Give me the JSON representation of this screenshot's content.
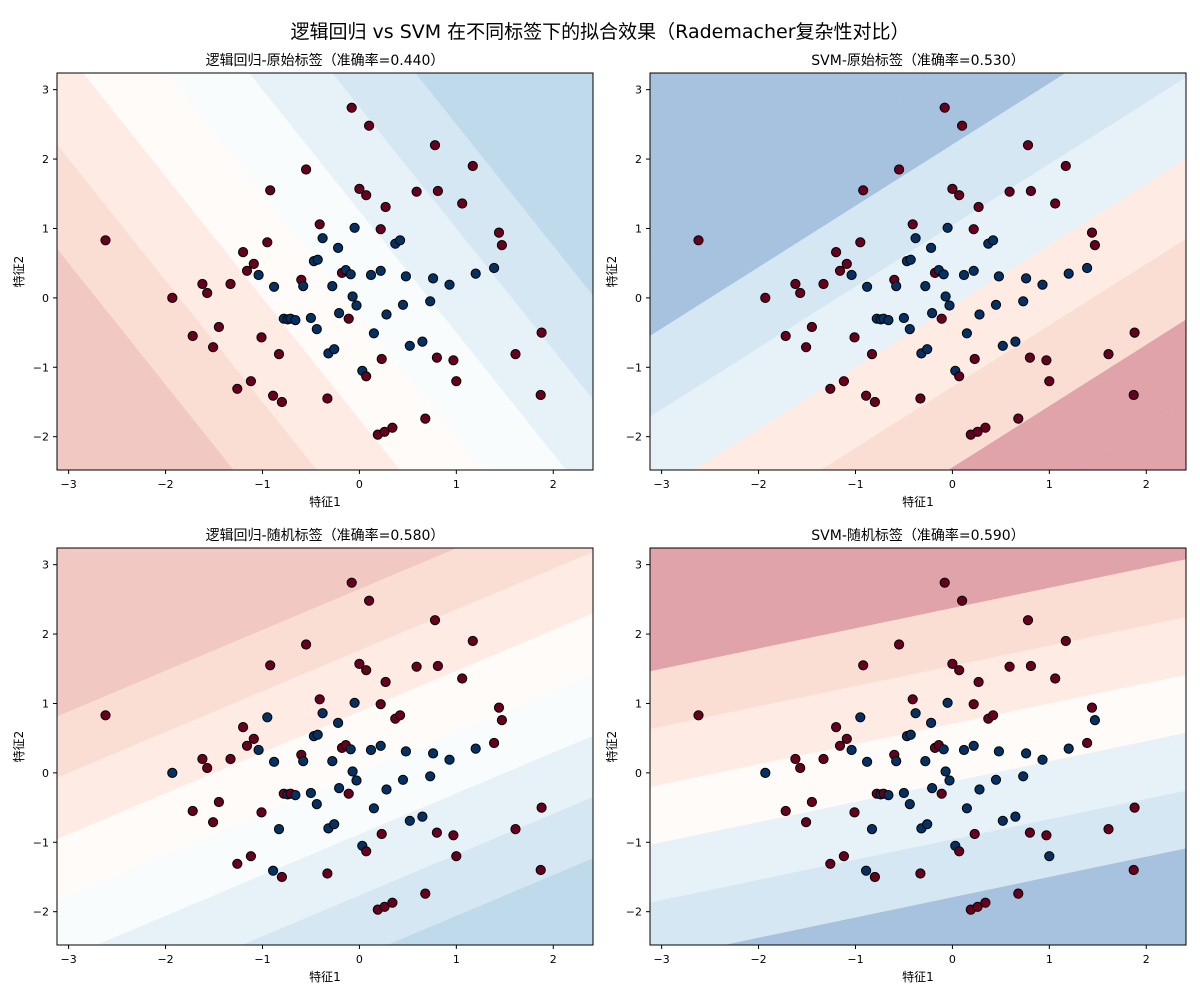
{
  "suptitle": "逻辑回归 vs SVM 在不同标签下的拟合效果（Rademacher复杂性对比）",
  "colors": {
    "class_pos": "#67001f",
    "class_neg": "#053061",
    "contour_red": [
      "#f4a582",
      "#ef8a62",
      "#d6604d",
      "#b2182b"
    ],
    "contour_blue": [
      "#92c5de",
      "#67a9cf",
      "#4393c3",
      "#2166ac"
    ]
  },
  "points": {
    "x": [
      -2.62,
      -1.93,
      -1.72,
      -1.62,
      -1.57,
      -1.51,
      -1.45,
      -1.33,
      -1.26,
      -1.2,
      -1.16,
      -1.12,
      -1.09,
      -1.04,
      -1.01,
      -0.95,
      -0.92,
      -0.89,
      -0.88,
      -0.83,
      -0.8,
      -0.78,
      -0.74,
      -0.71,
      -0.66,
      -0.6,
      -0.58,
      -0.55,
      -0.5,
      -0.47,
      -0.44,
      -0.43,
      -0.41,
      -0.38,
      -0.33,
      -0.32,
      -0.28,
      -0.26,
      -0.22,
      -0.21,
      -0.18,
      -0.14,
      -0.11,
      -0.09,
      -0.08,
      -0.07,
      -0.05,
      -0.03,
      0.0,
      0.03,
      0.07,
      0.07,
      0.1,
      0.12,
      0.15,
      0.19,
      0.22,
      0.22,
      0.23,
      0.26,
      0.27,
      0.28,
      0.34,
      0.37,
      0.42,
      0.45,
      0.48,
      0.52,
      0.59,
      0.65,
      0.68,
      0.73,
      0.76,
      0.78,
      0.8,
      0.81,
      0.93,
      0.97,
      1.0,
      1.06,
      1.17,
      1.2,
      1.39,
      1.44,
      1.47,
      1.61,
      1.87,
      1.88
    ],
    "y": [
      0.83,
      0.0,
      -0.55,
      0.2,
      0.07,
      -0.71,
      -0.42,
      0.2,
      -1.31,
      0.66,
      0.39,
      -1.2,
      0.49,
      0.33,
      -0.57,
      0.8,
      1.55,
      -1.41,
      0.16,
      -0.81,
      -1.5,
      -0.3,
      -0.31,
      -0.3,
      -0.32,
      0.26,
      0.17,
      1.85,
      -0.29,
      0.53,
      -0.45,
      0.55,
      1.06,
      0.86,
      -1.45,
      -0.8,
      0.17,
      -0.74,
      0.72,
      -0.22,
      0.36,
      0.4,
      -0.3,
      0.34,
      2.74,
      0.02,
      1.01,
      -0.11,
      1.57,
      -1.05,
      -1.13,
      1.48,
      2.48,
      0.33,
      -0.51,
      -1.97,
      0.99,
      0.39,
      -0.88,
      -1.93,
      1.31,
      -0.24,
      -1.87,
      0.78,
      0.83,
      -0.1,
      0.31,
      -0.69,
      1.53,
      -0.63,
      -1.74,
      -0.05,
      0.28,
      2.2,
      -0.86,
      1.54,
      0.19,
      -0.9,
      -1.2,
      1.36,
      1.9,
      0.35,
      0.43,
      0.94,
      0.76,
      -0.81,
      -1.4,
      -0.5
    ]
  },
  "chart_data": [
    {
      "type": "scatter",
      "title": "逻辑回归-原始标签（准确率=0.440）",
      "xlabel": "特征1",
      "ylabel": "特征2",
      "xlim": [
        -3.12,
        2.41
      ],
      "ylim": [
        -2.48,
        3.24
      ],
      "xticks": [
        -3,
        -2,
        -1,
        0,
        1,
        2
      ],
      "yticks": [
        -2,
        -1,
        0,
        1,
        2,
        3
      ],
      "decision_function": {
        "w": [
          -0.35,
          -0.2
        ],
        "b": -0.05,
        "levels": [
          -0.9,
          -0.6,
          -0.3,
          0.0,
          0.3,
          0.6,
          0.9
        ],
        "max_level": 1.2
      },
      "labels": [
        1,
        1,
        1,
        1,
        1,
        1,
        1,
        1,
        1,
        1,
        1,
        1,
        1,
        0,
        1,
        1,
        1,
        1,
        0,
        1,
        1,
        0,
        0,
        0,
        0,
        1,
        0,
        1,
        0,
        0,
        0,
        0,
        1,
        0,
        1,
        0,
        0,
        0,
        0,
        0,
        1,
        0,
        1,
        0,
        1,
        0,
        0,
        0,
        1,
        0,
        1,
        1,
        1,
        0,
        0,
        1,
        1,
        0,
        1,
        1,
        1,
        0,
        1,
        0,
        0,
        0,
        0,
        0,
        1,
        0,
        1,
        0,
        0,
        1,
        1,
        1,
        0,
        1,
        1,
        1,
        1,
        0,
        0,
        1,
        1,
        1,
        1,
        1
      ]
    },
    {
      "type": "scatter",
      "title": "SVM-原始标签（准确率=0.530）",
      "xlabel": "特征1",
      "ylabel": "特征2",
      "xlim": [
        -3.12,
        2.41
      ],
      "ylim": [
        -2.48,
        3.24
      ],
      "xticks": [
        -3,
        -2,
        -1,
        0,
        1,
        2
      ],
      "yticks": [
        -2,
        -1,
        0,
        1,
        2,
        3
      ],
      "decision_function": {
        "w": [
          0.38,
          -0.43
        ],
        "b": -0.05,
        "levels": [
          -1.5,
          -1.0,
          -0.5,
          0.0,
          0.5,
          1.0,
          1.5
        ],
        "max_level": 2.0
      },
      "labels": [
        1,
        1,
        1,
        1,
        1,
        1,
        1,
        1,
        1,
        1,
        1,
        1,
        1,
        0,
        1,
        1,
        1,
        1,
        0,
        1,
        1,
        0,
        0,
        0,
        0,
        1,
        0,
        1,
        0,
        0,
        0,
        0,
        1,
        0,
        1,
        0,
        0,
        0,
        0,
        0,
        1,
        0,
        1,
        0,
        1,
        0,
        0,
        0,
        1,
        0,
        1,
        1,
        1,
        0,
        0,
        1,
        1,
        0,
        1,
        1,
        1,
        0,
        1,
        0,
        0,
        0,
        0,
        0,
        1,
        0,
        1,
        0,
        0,
        1,
        1,
        1,
        0,
        1,
        1,
        1,
        1,
        0,
        0,
        1,
        1,
        1,
        1,
        1
      ]
    },
    {
      "type": "scatter",
      "title": "逻辑回归-随机标签（准确率=0.580）",
      "xlabel": "特征1",
      "ylabel": "特征2",
      "xlim": [
        -3.12,
        2.41
      ],
      "ylim": [
        -2.48,
        3.24
      ],
      "xticks": [
        -3,
        -2,
        -1,
        0,
        1,
        2
      ],
      "yticks": [
        -2,
        -1,
        0,
        1,
        2,
        3
      ],
      "decision_function": {
        "w": [
          -0.2,
          0.34
        ],
        "b": 0.0,
        "levels": [
          -0.9,
          -0.6,
          -0.3,
          0.0,
          0.3,
          0.6,
          0.9
        ],
        "max_level": 1.2
      },
      "labels": [
        1,
        0,
        1,
        1,
        1,
        1,
        1,
        1,
        1,
        1,
        1,
        1,
        1,
        0,
        1,
        0,
        1,
        0,
        0,
        0,
        1,
        1,
        0,
        1,
        0,
        1,
        0,
        1,
        0,
        0,
        0,
        0,
        1,
        0,
        1,
        0,
        0,
        0,
        0,
        0,
        1,
        1,
        1,
        0,
        1,
        0,
        0,
        0,
        1,
        0,
        1,
        1,
        1,
        0,
        0,
        1,
        1,
        0,
        1,
        1,
        1,
        0,
        1,
        1,
        1,
        0,
        0,
        0,
        1,
        0,
        1,
        0,
        0,
        1,
        1,
        1,
        0,
        1,
        1,
        1,
        1,
        0,
        1,
        1,
        1,
        1,
        1,
        1
      ]
    },
    {
      "type": "scatter",
      "title": "SVM-随机标签（准确率=0.590）",
      "xlabel": "特征1",
      "ylabel": "特征2",
      "xlim": [
        -3.12,
        2.41
      ],
      "ylim": [
        -2.48,
        3.24
      ],
      "xticks": [
        -3,
        -2,
        -1,
        0,
        1,
        2
      ],
      "yticks": [
        -2,
        -1,
        0,
        1,
        2,
        3
      ],
      "decision_function": {
        "w": [
          -0.14,
          0.48
        ],
        "b": -0.14,
        "levels": [
          -1.0,
          -0.6,
          -0.2,
          0.2,
          0.6,
          1.0
        ],
        "max_level": 1.4
      },
      "labels": [
        1,
        0,
        1,
        1,
        1,
        1,
        1,
        1,
        1,
        1,
        1,
        1,
        1,
        0,
        1,
        0,
        1,
        0,
        0,
        0,
        1,
        1,
        0,
        1,
        0,
        1,
        0,
        1,
        0,
        0,
        0,
        0,
        1,
        0,
        1,
        0,
        0,
        0,
        0,
        0,
        1,
        1,
        1,
        0,
        1,
        0,
        0,
        0,
        1,
        0,
        1,
        1,
        1,
        0,
        0,
        1,
        1,
        0,
        1,
        1,
        1,
        0,
        1,
        1,
        1,
        0,
        0,
        0,
        1,
        0,
        1,
        0,
        0,
        1,
        1,
        1,
        0,
        1,
        0,
        1,
        1,
        0,
        1,
        1,
        0,
        1,
        1,
        1
      ]
    }
  ]
}
